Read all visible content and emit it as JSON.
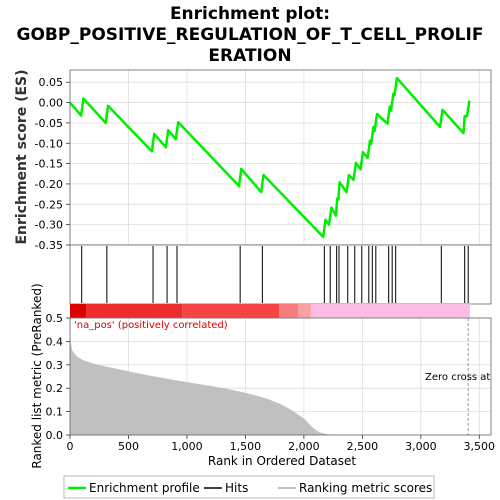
{
  "chart_data": {
    "type": "line",
    "title": [
      "Enrichment plot:",
      "GOBP_POSITIVE_REGULATION_OF_T_CELL_PROLIF",
      "ERATION"
    ],
    "top_panel": {
      "ylabel": "Enrichment score (ES)",
      "ylim": [
        -0.35,
        0.08
      ],
      "yticks": [
        "0.05",
        "0.00",
        "-0.05",
        "-0.10",
        "-0.15",
        "-0.20",
        "-0.25",
        "-0.30",
        "-0.35"
      ],
      "ytick_values": [
        0.05,
        0.0,
        -0.05,
        -0.1,
        -0.15,
        -0.2,
        -0.25,
        -0.3,
        -0.35
      ],
      "grid": true,
      "series_color": "#00ee00",
      "enrichment_points": [
        [
          0,
          0.0
        ],
        [
          95,
          -0.032
        ],
        [
          115,
          0.01
        ],
        [
          305,
          -0.05
        ],
        [
          325,
          -0.008
        ],
        [
          700,
          -0.12
        ],
        [
          720,
          -0.077
        ],
        [
          820,
          -0.11
        ],
        [
          840,
          -0.068
        ],
        [
          905,
          -0.09
        ],
        [
          925,
          -0.048
        ],
        [
          1445,
          -0.205
        ],
        [
          1465,
          -0.163
        ],
        [
          1635,
          -0.22
        ],
        [
          1655,
          -0.178
        ],
        [
          2165,
          -0.33
        ],
        [
          2185,
          -0.288
        ],
        [
          2215,
          -0.3
        ],
        [
          2235,
          -0.258
        ],
        [
          2275,
          -0.278
        ],
        [
          2285,
          -0.236
        ],
        [
          2295,
          -0.238
        ],
        [
          2305,
          -0.196
        ],
        [
          2365,
          -0.22
        ],
        [
          2385,
          -0.178
        ],
        [
          2425,
          -0.19
        ],
        [
          2445,
          -0.148
        ],
        [
          2485,
          -0.164
        ],
        [
          2505,
          -0.122
        ],
        [
          2545,
          -0.136
        ],
        [
          2565,
          -0.094
        ],
        [
          2575,
          -0.102
        ],
        [
          2595,
          -0.06
        ],
        [
          2605,
          -0.07
        ],
        [
          2625,
          -0.028
        ],
        [
          2715,
          -0.052
        ],
        [
          2735,
          -0.01
        ],
        [
          2745,
          -0.02
        ],
        [
          2765,
          0.022
        ],
        [
          2775,
          0.018
        ],
        [
          2795,
          0.06
        ],
        [
          3165,
          -0.06
        ],
        [
          3185,
          -0.018
        ],
        [
          3365,
          -0.075
        ],
        [
          3375,
          -0.033
        ],
        [
          3395,
          -0.034
        ],
        [
          3415,
          0.005
        ]
      ]
    },
    "hits": [
      100,
      315,
      710,
      830,
      915,
      1455,
      1645,
      2175,
      2225,
      2280,
      2300,
      2375,
      2435,
      2495,
      2555,
      2585,
      2615,
      2725,
      2755,
      2785,
      3175,
      3375,
      3405
    ],
    "ranking_bar": {
      "colors": [
        [
          0,
          140,
          "#dd0000"
        ],
        [
          140,
          960,
          "#ee2c2c"
        ],
        [
          960,
          1790,
          "#f44444"
        ],
        [
          1790,
          1950,
          "#f87c7c"
        ],
        [
          1950,
          2060,
          "#fba0a0"
        ],
        [
          2060,
          3420,
          "#ffbde6"
        ]
      ]
    },
    "bottom_panel": {
      "ylabel": "Ranked list metric (PreRanked)",
      "ylim": [
        0.0,
        0.5
      ],
      "yticks": [
        "0.5",
        "0.4",
        "0.3",
        "0.2",
        "0.1",
        "0.0"
      ],
      "ytick_values": [
        0.5,
        0.4,
        0.3,
        0.2,
        0.1,
        0.0
      ],
      "metric_points": [
        [
          0,
          0.41
        ],
        [
          20,
          0.36
        ],
        [
          60,
          0.335
        ],
        [
          120,
          0.318
        ],
        [
          200,
          0.305
        ],
        [
          300,
          0.293
        ],
        [
          400,
          0.283
        ],
        [
          500,
          0.272
        ],
        [
          600,
          0.262
        ],
        [
          700,
          0.252
        ],
        [
          800,
          0.243
        ],
        [
          900,
          0.234
        ],
        [
          1000,
          0.226
        ],
        [
          1100,
          0.218
        ],
        [
          1200,
          0.21
        ],
        [
          1300,
          0.201
        ],
        [
          1400,
          0.191
        ],
        [
          1500,
          0.18
        ],
        [
          1600,
          0.168
        ],
        [
          1700,
          0.152
        ],
        [
          1800,
          0.132
        ],
        [
          1900,
          0.105
        ],
        [
          2000,
          0.07
        ],
        [
          2080,
          0.03
        ],
        [
          2130,
          0.012
        ],
        [
          2200,
          0.003
        ],
        [
          2300,
          0.001
        ],
        [
          3420,
          0.0
        ]
      ],
      "fill_color": "#c0c0c0",
      "annotation_positive": "'na_pos' (positively correlated)",
      "annotation_zero": "Zero cross at",
      "zero_cross_x": 3405
    },
    "xaxis": {
      "label": "Rank in Ordered Dataset",
      "xlim": [
        0,
        3600
      ],
      "ticks": [
        0,
        500,
        1000,
        1500,
        2000,
        2500,
        3000,
        3500
      ],
      "tick_labels": [
        "0",
        "500",
        "1,000",
        "1,500",
        "2,000",
        "2,500",
        "3,000",
        "3,500"
      ]
    },
    "legend": {
      "placement": "bottom",
      "entries": [
        {
          "label": "Enrichment profile",
          "color": "#00ee00"
        },
        {
          "label": "Hits",
          "color": "#000000"
        },
        {
          "label": "Ranking metric scores",
          "color": "#c0c0c0"
        }
      ]
    }
  }
}
